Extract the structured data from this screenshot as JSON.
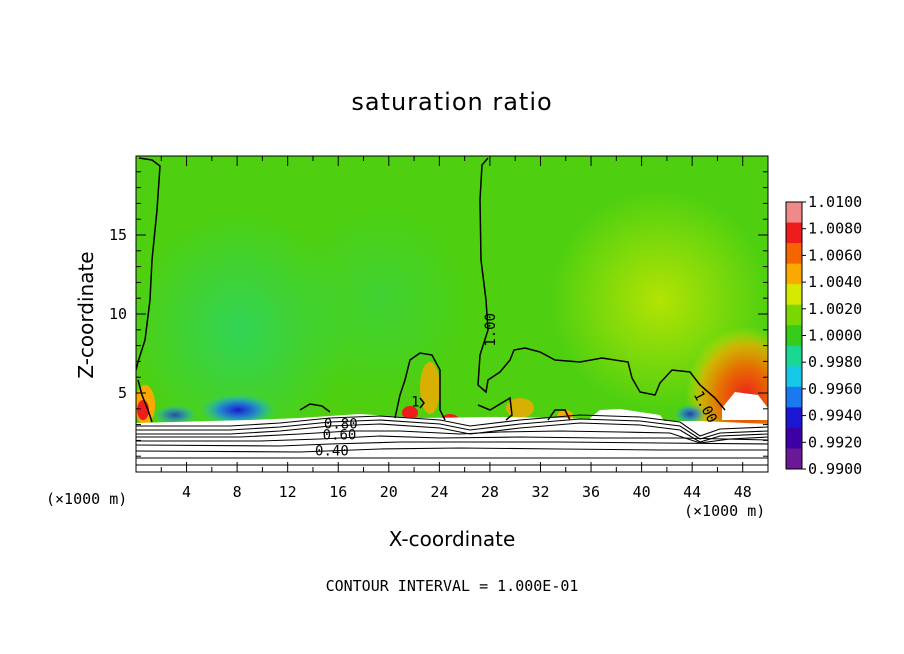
{
  "chart_data": {
    "type": "heatmap",
    "title": "saturation ratio",
    "xlabel": "X-coordinate",
    "ylabel": "Z-coordinate",
    "x_unit_label": "(×1000 m)",
    "x_ticks": [
      4,
      8,
      12,
      16,
      20,
      24,
      28,
      32,
      36,
      40,
      44,
      48
    ],
    "y_ticks": [
      5,
      10,
      15
    ],
    "xlim": [
      0,
      50
    ],
    "ylim": [
      0,
      20
    ],
    "colorbar": {
      "range": [
        0.99,
        1.01
      ],
      "labels": [
        "1.0100",
        "1.0080",
        "1.0060",
        "1.0040",
        "1.0020",
        "1.0000",
        "0.9980",
        "0.9960",
        "0.9940",
        "0.9920",
        "0.9900"
      ],
      "colors": [
        "#f08a8a",
        "#ee1c1c",
        "#f66400",
        "#fba800",
        "#d5ea00",
        "#7ad800",
        "#37cc1a",
        "#1ad891",
        "#15c8e6",
        "#1a78f0",
        "#1a16d2",
        "#3c00a5",
        "#6a1896"
      ]
    },
    "contour_labels": [
      {
        "text": "1.00",
        "x": 28.1,
        "z": 9.0,
        "rotate": -90
      },
      {
        "text": "1.00",
        "x": 45.0,
        "z": 4.1,
        "rotate": 62
      },
      {
        "text": "1",
        "x": 22.1,
        "z": 4.4,
        "rotate": 0
      },
      {
        "text": "0.80",
        "x": 16.2,
        "z": 3.0,
        "rotate": 0
      },
      {
        "text": "0.60",
        "x": 16.1,
        "z": 2.3,
        "rotate": 0
      },
      {
        "text": "0.40",
        "x": 15.5,
        "z": 1.3,
        "rotate": 0
      }
    ],
    "contour_interval": "CONTOUR INTERVAL = 1.000E-01"
  }
}
